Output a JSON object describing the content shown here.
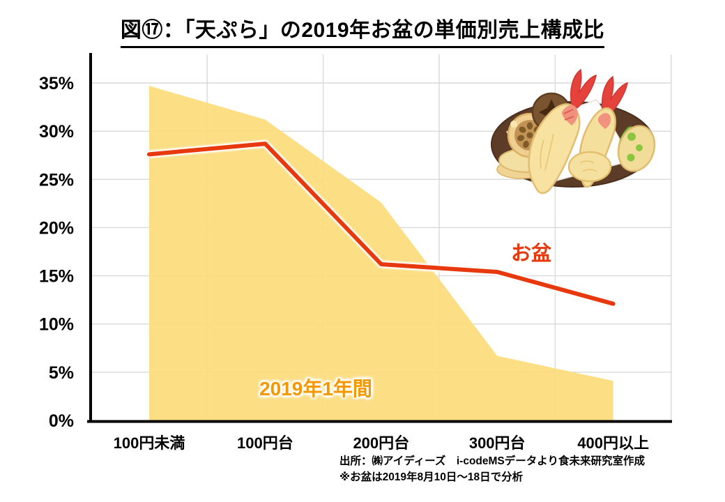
{
  "page_title": "図⑰：「天ぷら」の2019年お盆の単価別売上構成比",
  "chart_data": {
    "type": "area",
    "title": "図⑰：「天ぷら」の2019年お盆の単価別売上構成比",
    "categories": [
      "100円未満",
      "100円台",
      "200円台",
      "300円台",
      "400円以上"
    ],
    "series": [
      {
        "name": "2019年1年間",
        "type": "area",
        "color": "#FCDC7E",
        "label_color": "#F39800",
        "values": [
          34.7,
          31.2,
          22.6,
          6.7,
          4.1
        ]
      },
      {
        "name": "お盆",
        "type": "line",
        "color": "#E8380D",
        "label_color": "#E8380D",
        "values": [
          27.6,
          28.7,
          16.2,
          15.4,
          12.1
        ]
      }
    ],
    "yticks": [
      "0%",
      "5%",
      "10%",
      "15%",
      "20%",
      "25%",
      "30%",
      "35%"
    ],
    "ylim": [
      0,
      35
    ],
    "ytick_step": 5,
    "xlabel": "",
    "ylabel": "",
    "grid": true,
    "legend_position": "inline annotations on plot area"
  },
  "annotations": {
    "line_label": "お盆",
    "area_label": "2019年1年間"
  },
  "source": {
    "line1": "出所：㈱アイディーズ　i-codeMSデータより食未来研究室作成",
    "line2": "※お盆は2019年8月10日～18日で分析"
  },
  "colors": {
    "background": "#FFFFFF",
    "grid": "#D9D9D9",
    "axis": "#000000",
    "area": "#FCDC7E",
    "line": "#E8380D",
    "area_label": "#F39800",
    "line_glow": "#FFFFFF"
  },
  "icons": {
    "tempura_illustration": "tempura-plate-icon"
  }
}
